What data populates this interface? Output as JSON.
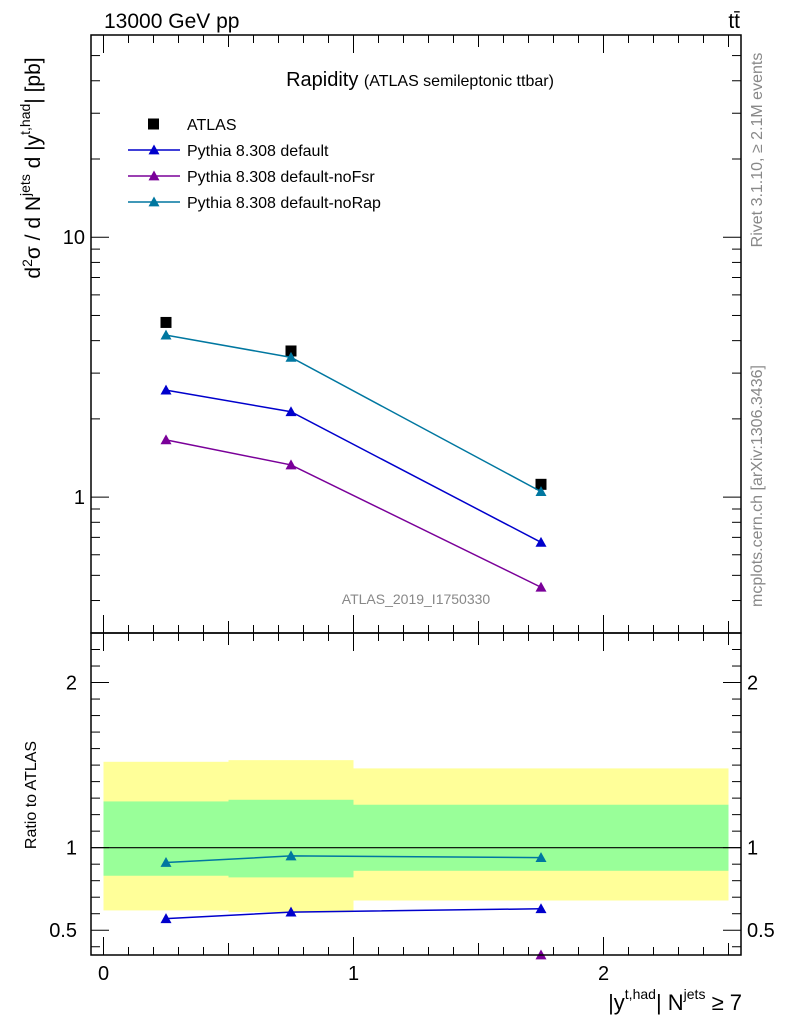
{
  "header": {
    "energy_label": "13000 GeV pp",
    "process_label": "tt̄"
  },
  "side_labels": {
    "rivet": "Rivet 3.1.10, ≥ 2.1M events",
    "mcplots": "mcplots.cern.ch [arXiv:1306.3436]"
  },
  "chart_data": [
    {
      "type": "scatter",
      "panel": "main",
      "title": "Rapidity",
      "subtitle": "(ATLAS semileptonic ttbar)",
      "analysis_id": "ATLAS_2019_I1750330",
      "ylabel_parts": {
        "d": "d",
        "two": "2",
        "sigma": "σ / d N",
        "jets": "jets",
        "d2": " d |y",
        "thad": "t,had",
        "unit": "| [pb]"
      },
      "yscale": "log",
      "ylim": [
        0.3,
        60
      ],
      "xlim": [
        -0.05,
        2.55
      ],
      "yticks_labeled": [
        {
          "v": 1,
          "label": "1"
        },
        {
          "v": 10,
          "label": "10"
        }
      ],
      "legend_placement": "top-left",
      "series": [
        {
          "name": "ATLAS",
          "marker": "square",
          "color": "#000000",
          "x": [
            0.25,
            0.75,
            1.75
          ],
          "y": [
            4.7,
            3.65,
            1.12
          ]
        },
        {
          "name": "Pythia 8.308 default",
          "marker": "triangle",
          "color": "#0000cc",
          "x": [
            0.25,
            0.75,
            1.75
          ],
          "y": [
            2.58,
            2.13,
            0.67
          ]
        },
        {
          "name": "Pythia 8.308 default-noFsr",
          "marker": "triangle",
          "color": "#7a0099",
          "x": [
            0.25,
            0.75,
            1.75
          ],
          "y": [
            1.66,
            1.33,
            0.45
          ]
        },
        {
          "name": "Pythia 8.308 default-noRap",
          "marker": "triangle",
          "color": "#0077a0",
          "x": [
            0.25,
            0.75,
            1.75
          ],
          "y": [
            4.2,
            3.45,
            1.05
          ]
        }
      ]
    },
    {
      "type": "scatter",
      "panel": "ratio",
      "ylabel": "Ratio to ATLAS",
      "xlabel_parts": {
        "y": "|y",
        "thad": "t,had",
        "n": "| N",
        "jets": "jets",
        "cond": " ≥ 7"
      },
      "yscale": "linear",
      "ylim": [
        0.35,
        2.3
      ],
      "xlim": [
        -0.05,
        2.55
      ],
      "xticks": [
        {
          "v": 0,
          "label": "0"
        },
        {
          "v": 1,
          "label": "1"
        },
        {
          "v": 2,
          "label": "2"
        }
      ],
      "yticks_labeled": [
        {
          "v": 0.5,
          "label": "0.5"
        },
        {
          "v": 1,
          "label": "1"
        },
        {
          "v": 2,
          "label": "2"
        }
      ],
      "bands": [
        {
          "x0": 0.0,
          "x1": 0.5,
          "total_lo": 0.62,
          "total_hi": 1.52,
          "stat_lo": 0.83,
          "stat_hi": 1.28
        },
        {
          "x0": 0.5,
          "x1": 1.0,
          "total_lo": 0.61,
          "total_hi": 1.53,
          "stat_lo": 0.82,
          "stat_hi": 1.29
        },
        {
          "x0": 1.0,
          "x1": 2.5,
          "total_lo": 0.68,
          "total_hi": 1.48,
          "stat_lo": 0.86,
          "stat_hi": 1.26
        }
      ],
      "band_colors": {
        "total": "#ffff99",
        "stat": "#99ff99"
      },
      "series": [
        {
          "name": "Pythia 8.308 default",
          "color": "#0000cc",
          "x": [
            0.25,
            0.75,
            1.75
          ],
          "y": [
            0.57,
            0.61,
            0.63
          ]
        },
        {
          "name": "Pythia 8.308 default-noFsr",
          "color": "#7a0099",
          "x": [
            1.75
          ],
          "y": [
            0.35
          ]
        },
        {
          "name": "Pythia 8.308 default-noRap",
          "color": "#0077a0",
          "x": [
            0.25,
            0.75,
            1.75
          ],
          "y": [
            0.91,
            0.95,
            0.94
          ]
        }
      ]
    }
  ]
}
